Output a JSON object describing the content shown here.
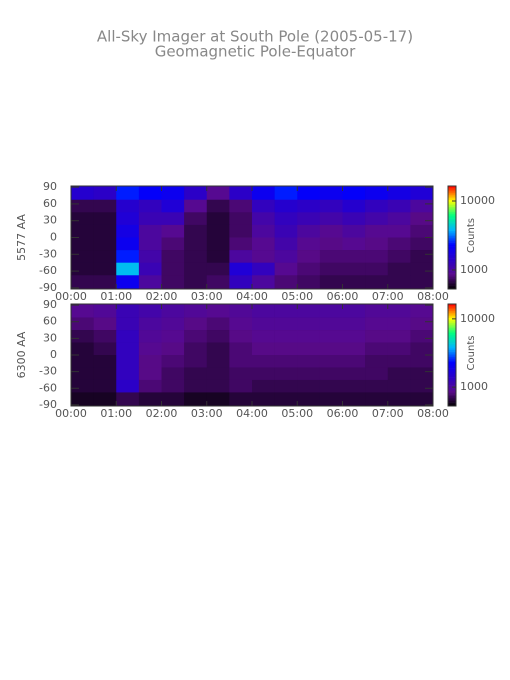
{
  "chart_data": [
    {
      "type": "heatmap",
      "title": "All-Sky Imager at South Pole (2005-05-17)",
      "subtitle": "Geomagnetic Pole-Equator",
      "ylabel": "5577 AA",
      "colorbar_label": "Counts",
      "x": [
        0.25,
        0.75,
        1.25,
        1.75,
        2.25,
        2.75,
        3.25,
        3.75,
        4.25,
        4.75,
        5.25,
        5.75,
        6.25,
        6.75,
        7.25,
        7.75
      ],
      "y": [
        78.75,
        56.25,
        33.75,
        11.25,
        -11.25,
        -33.75,
        -56.25,
        -78.75
      ],
      "values": [
        [
          1500,
          1400,
          2500,
          2200,
          2000,
          1400,
          900,
          1400,
          2000,
          2500,
          2200,
          2000,
          2200,
          2000,
          1800,
          1600
        ],
        [
          700,
          700,
          1500,
          1300,
          1600,
          900,
          700,
          800,
          1300,
          1500,
          1400,
          1300,
          1500,
          1300,
          1200,
          1000
        ],
        [
          650,
          650,
          1600,
          1200,
          1200,
          750,
          650,
          750,
          1100,
          1300,
          1200,
          1100,
          1200,
          1100,
          1000,
          850
        ],
        [
          650,
          650,
          1800,
          1000,
          900,
          700,
          650,
          750,
          1000,
          1200,
          1000,
          900,
          1000,
          900,
          900,
          800
        ],
        [
          650,
          650,
          2000,
          1000,
          800,
          700,
          650,
          800,
          900,
          1100,
          900,
          850,
          900,
          850,
          800,
          750
        ],
        [
          650,
          650,
          2500,
          1100,
          750,
          700,
          650,
          1000,
          900,
          1000,
          850,
          800,
          800,
          800,
          750,
          700
        ],
        [
          650,
          650,
          4000,
          1200,
          750,
          700,
          700,
          1600,
          1300,
          900,
          800,
          750,
          750,
          750,
          700,
          700
        ],
        [
          700,
          700,
          2000,
          1000,
          750,
          700,
          750,
          1300,
          1000,
          800,
          750,
          700,
          700,
          700,
          700,
          700
        ]
      ],
      "xlim": [
        0,
        8
      ],
      "xticks": [
        {
          "value": 0,
          "label": "00:00"
        },
        {
          "value": 1,
          "label": "01:00"
        },
        {
          "value": 2,
          "label": "02:00"
        },
        {
          "value": 3,
          "label": "03:00"
        },
        {
          "value": 4,
          "label": "04:00"
        },
        {
          "value": 5,
          "label": "05:00"
        },
        {
          "value": 6,
          "label": "06:00"
        },
        {
          "value": 7,
          "label": "07:00"
        },
        {
          "value": 8,
          "label": "08:00"
        }
      ],
      "ylim": [
        -92,
        92
      ],
      "yticks": [
        -90,
        -60,
        -30,
        0,
        30,
        60,
        90
      ],
      "clim": [
        530,
        16500
      ],
      "clog": true,
      "cticks": [
        1000,
        10000
      ],
      "colormap": [
        "#000000",
        "#5a0a8c",
        "#2a00c8",
        "#0000ff",
        "#00b4ff",
        "#00ff80",
        "#ffff00",
        "#ff0000"
      ]
    },
    {
      "type": "heatmap",
      "ylabel": "6300 AA",
      "colorbar_label": "Counts",
      "x": [
        0.25,
        0.75,
        1.25,
        1.75,
        2.25,
        2.75,
        3.25,
        3.75,
        4.25,
        4.75,
        5.25,
        5.75,
        6.25,
        6.75,
        7.25,
        7.75
      ],
      "y": [
        78.75,
        56.25,
        33.75,
        11.25,
        -11.25,
        -33.75,
        -56.25,
        -78.75
      ],
      "values": [
        [
          900,
          950,
          1200,
          1100,
          1000,
          950,
          900,
          950,
          1000,
          1000,
          1000,
          1000,
          1000,
          950,
          950,
          900
        ],
        [
          800,
          850,
          1200,
          1000,
          950,
          850,
          800,
          900,
          950,
          950,
          950,
          950,
          950,
          900,
          900,
          850
        ],
        [
          700,
          750,
          1300,
          950,
          900,
          800,
          750,
          850,
          900,
          900,
          900,
          900,
          900,
          850,
          850,
          800
        ],
        [
          650,
          700,
          1300,
          900,
          850,
          750,
          700,
          800,
          850,
          850,
          850,
          850,
          850,
          800,
          800,
          750
        ],
        [
          650,
          650,
          1300,
          850,
          800,
          750,
          700,
          800,
          800,
          800,
          800,
          800,
          800,
          750,
          750,
          750
        ],
        [
          650,
          650,
          1300,
          850,
          750,
          700,
          700,
          750,
          750,
          750,
          750,
          750,
          750,
          750,
          700,
          700
        ],
        [
          650,
          650,
          1400,
          800,
          750,
          700,
          700,
          750,
          700,
          700,
          700,
          700,
          700,
          700,
          700,
          700
        ],
        [
          600,
          600,
          700,
          650,
          650,
          600,
          600,
          650,
          650,
          650,
          650,
          650,
          650,
          650,
          650,
          650
        ]
      ],
      "xlim": [
        0,
        8
      ],
      "xticks": [
        {
          "value": 0,
          "label": "00:00"
        },
        {
          "value": 1,
          "label": "01:00"
        },
        {
          "value": 2,
          "label": "02:00"
        },
        {
          "value": 3,
          "label": "03:00"
        },
        {
          "value": 4,
          "label": "04:00"
        },
        {
          "value": 5,
          "label": "05:00"
        },
        {
          "value": 6,
          "label": "06:00"
        },
        {
          "value": 7,
          "label": "07:00"
        },
        {
          "value": 8,
          "label": "08:00"
        }
      ],
      "ylim": [
        -92,
        92
      ],
      "yticks": [
        -90,
        -60,
        -30,
        0,
        30,
        60,
        90
      ],
      "clim": [
        530,
        16500
      ],
      "clog": true,
      "cticks": [
        1000,
        10000
      ],
      "colormap": [
        "#000000",
        "#5a0a8c",
        "#2a00c8",
        "#0000ff",
        "#00b4ff",
        "#00ff80",
        "#ffff00",
        "#ff0000"
      ]
    }
  ]
}
